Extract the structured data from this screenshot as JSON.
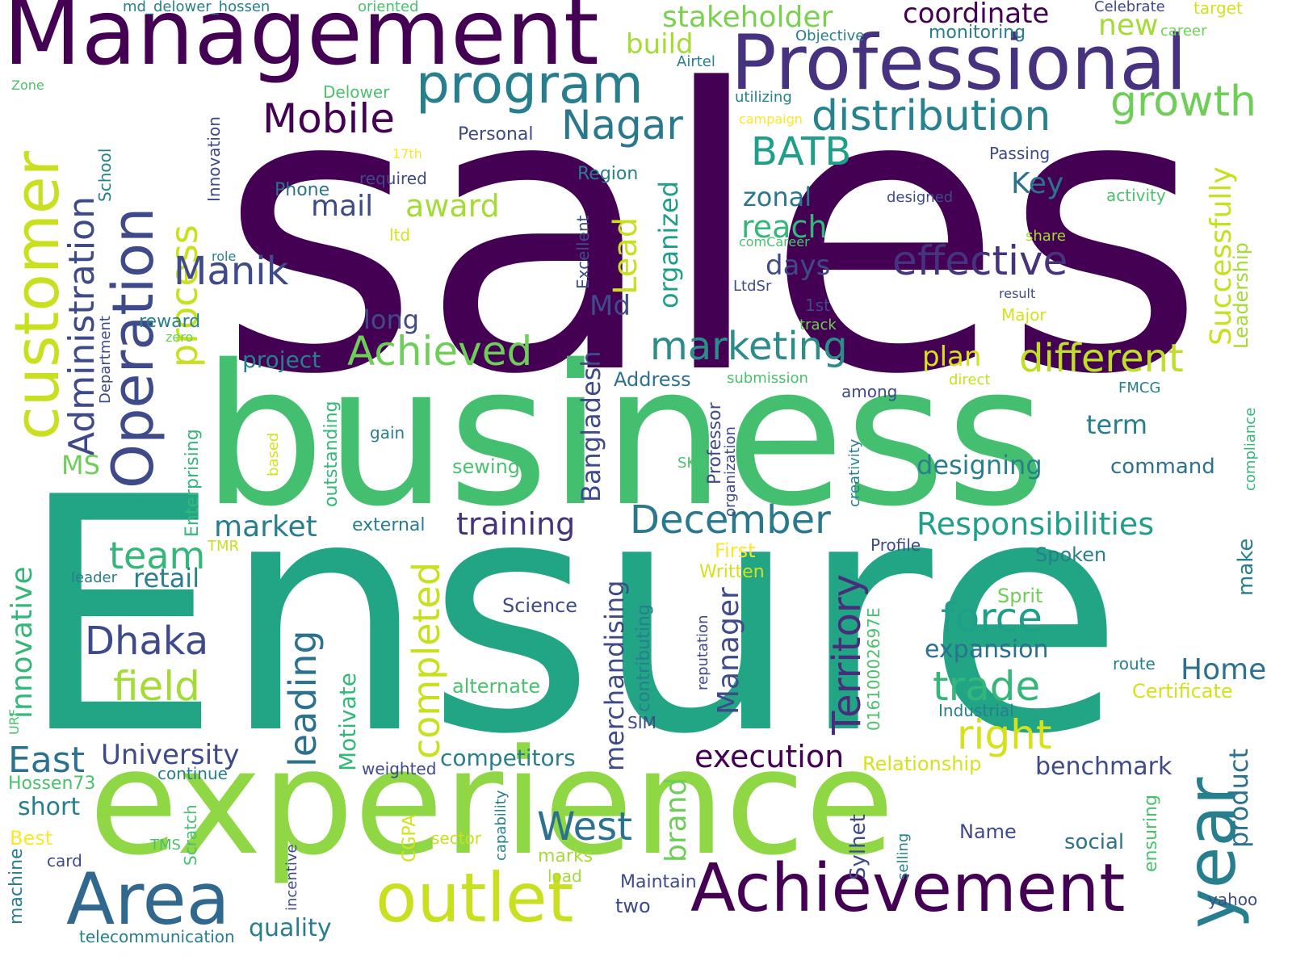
{
  "palette": [
    "#440154",
    "#46327e",
    "#365c8d",
    "#277f8e",
    "#1fa187",
    "#4ac16d",
    "#a0da39",
    "#fde725"
  ],
  "words": [
    {
      "text": "sales",
      "color": "#440154"
    },
    {
      "text": "Ensure",
      "color": "#21a585"
    },
    {
      "text": "business",
      "color": "#44bf70"
    },
    {
      "text": "experience",
      "color": "#8fd744"
    },
    {
      "text": "Management",
      "color": "#440154"
    },
    {
      "text": "Professional",
      "color": "#46327e"
    },
    {
      "text": "customer",
      "color": "#c8e020"
    },
    {
      "text": "Operation",
      "color": "#3e4a89"
    },
    {
      "text": "Achievement",
      "color": "#440154"
    },
    {
      "text": "Area",
      "color": "#31688e"
    },
    {
      "text": "outlet",
      "color": "#c8e020"
    },
    {
      "text": "year",
      "color": "#277f8e"
    },
    {
      "text": "program",
      "color": "#277f8e"
    },
    {
      "text": "distribution",
      "color": "#26828e"
    },
    {
      "text": "growth",
      "color": "#6ece58"
    },
    {
      "text": "Nagar",
      "color": "#2a788e"
    },
    {
      "text": "Mobile",
      "color": "#440154"
    },
    {
      "text": "Administration",
      "color": "#3e4a89"
    },
    {
      "text": "process",
      "color": "#c8e020"
    },
    {
      "text": "BATB",
      "color": "#1f9e89"
    },
    {
      "text": "effective",
      "color": "#46327e"
    },
    {
      "text": "marketing",
      "color": "#2c8c8a"
    },
    {
      "text": "Achieved",
      "color": "#6ece58"
    },
    {
      "text": "different",
      "color": "#bddf26"
    },
    {
      "text": "Manik",
      "color": "#3e4a89"
    },
    {
      "text": "December",
      "color": "#2a788e"
    },
    {
      "text": "Territory",
      "color": "#472d7b"
    },
    {
      "text": "team",
      "color": "#35b779"
    },
    {
      "text": "Dhaka",
      "color": "#3e4a89"
    },
    {
      "text": "field",
      "color": "#a5db36"
    },
    {
      "text": "completed",
      "color": "#c8e020"
    },
    {
      "text": "leading",
      "color": "#2c728e"
    },
    {
      "text": "West",
      "color": "#2c728e"
    },
    {
      "text": "East",
      "color": "#2c728e"
    },
    {
      "text": "force",
      "color": "#1f9e89"
    },
    {
      "text": "trade",
      "color": "#35b779"
    },
    {
      "text": "right",
      "color": "#d5e21a"
    },
    {
      "text": "Responsibilities",
      "color": "#1f9e89"
    },
    {
      "text": "execution",
      "color": "#440154"
    },
    {
      "text": "University",
      "color": "#3e4a89"
    },
    {
      "text": "training",
      "color": "#46327e"
    },
    {
      "text": "stakeholder",
      "color": "#7ad151"
    },
    {
      "text": "coordinate",
      "color": "#440154"
    },
    {
      "text": "build",
      "color": "#a5db36"
    },
    {
      "text": "new",
      "color": "#a5db36"
    },
    {
      "text": "monitoring",
      "color": "#277f8e"
    },
    {
      "text": "Lead",
      "color": "#c8e020"
    },
    {
      "text": "organized",
      "color": "#1f9e89"
    },
    {
      "text": "award",
      "color": "#a5db36"
    },
    {
      "text": "mail",
      "color": "#3e4a89"
    },
    {
      "text": "reach",
      "color": "#35b779"
    },
    {
      "text": "zonal",
      "color": "#2a788e"
    },
    {
      "text": "Key",
      "color": "#2c728e"
    },
    {
      "text": "Successfully",
      "color": "#c8e020"
    },
    {
      "text": "Leadership",
      "color": "#a5db36"
    },
    {
      "text": "days",
      "color": "#3e4a89"
    },
    {
      "text": "Md",
      "color": "#3e4a89"
    },
    {
      "text": "Bangladesh",
      "color": "#3e4a89"
    },
    {
      "text": "plan",
      "color": "#d5e21a"
    },
    {
      "text": "project",
      "color": "#277f8e"
    },
    {
      "text": "long",
      "color": "#3e4a89"
    },
    {
      "text": "MS",
      "color": "#6ece58"
    },
    {
      "text": "market",
      "color": "#277f8e"
    },
    {
      "text": "retail",
      "color": "#277f8e"
    },
    {
      "text": "term",
      "color": "#277f8e"
    },
    {
      "text": "designing",
      "color": "#277f8e"
    },
    {
      "text": "command",
      "color": "#2c728e"
    },
    {
      "text": "innovative",
      "color": "#35b779"
    },
    {
      "text": "Manager",
      "color": "#3e4a89"
    },
    {
      "text": "merchandising",
      "color": "#3e4a89"
    },
    {
      "text": "brand",
      "color": "#6ece58"
    },
    {
      "text": "product",
      "color": "#2c728e"
    },
    {
      "text": "expansion",
      "color": "#2c728e"
    },
    {
      "text": "Home",
      "color": "#2c728e"
    },
    {
      "text": "benchmark",
      "color": "#3e4a89"
    },
    {
      "text": "competitors",
      "color": "#277f8e"
    },
    {
      "text": "Motivate",
      "color": "#35b779"
    },
    {
      "text": "outstanding",
      "color": "#35b779"
    },
    {
      "text": "Enterprising",
      "color": "#35b779"
    },
    {
      "text": "short",
      "color": "#277f8e"
    },
    {
      "text": "quality",
      "color": "#277f8e"
    },
    {
      "text": "two",
      "color": "#3e4a89"
    },
    {
      "text": "Sylhet",
      "color": "#3e4a89"
    },
    {
      "text": "social",
      "color": "#2c728e"
    },
    {
      "text": "make",
      "color": "#277f8e"
    },
    {
      "text": "Spoken",
      "color": "#277f8e"
    },
    {
      "text": "Science",
      "color": "#3e4a89"
    },
    {
      "text": "alternate",
      "color": "#4ac16d"
    },
    {
      "text": "sewing",
      "color": "#4ac16d"
    },
    {
      "text": "external",
      "color": "#277f8e"
    },
    {
      "text": "Written",
      "color": "#d5e21a"
    },
    {
      "text": "First",
      "color": "#fde725"
    },
    {
      "text": "Sprit",
      "color": "#6ece58"
    },
    {
      "text": "Certificate",
      "color": "#d5e21a"
    },
    {
      "text": "Relationship",
      "color": "#d5e21a"
    },
    {
      "text": "Name",
      "color": "#3e4a89"
    },
    {
      "text": "load",
      "color": "#a5db36"
    },
    {
      "text": "marks",
      "color": "#a5db36"
    },
    {
      "text": "sector",
      "color": "#c8e020"
    },
    {
      "text": "CGPA",
      "color": "#d5e21a"
    },
    {
      "text": "TMS",
      "color": "#4ac16d"
    },
    {
      "text": "Scratch",
      "color": "#4ac16d"
    },
    {
      "text": "card",
      "color": "#3e4a89"
    },
    {
      "text": "Best",
      "color": "#fde725"
    },
    {
      "text": "machine",
      "color": "#277f8e"
    },
    {
      "text": "Hossen73",
      "color": "#4ac16d"
    },
    {
      "text": "continue",
      "color": "#277f8e"
    },
    {
      "text": "weighted",
      "color": "#3e4a89"
    },
    {
      "text": "telecommunication",
      "color": "#277f8e"
    },
    {
      "text": "Maintain",
      "color": "#3e4a89"
    },
    {
      "text": "incentive",
      "color": "#3e4a89"
    },
    {
      "text": "capability",
      "color": "#277f8e"
    },
    {
      "text": "selling",
      "color": "#277f8e"
    },
    {
      "text": "ensuring",
      "color": "#4ac16d"
    },
    {
      "text": "yahoo",
      "color": "#3e4a89"
    },
    {
      "text": "route",
      "color": "#277f8e"
    },
    {
      "text": "Industrial",
      "color": "#277f8e"
    },
    {
      "text": "SIM",
      "color": "#3e4a89"
    },
    {
      "text": "contributing",
      "color": "#277f8e"
    },
    {
      "text": "reputation",
      "color": "#3e4a89"
    },
    {
      "text": "01610002697E",
      "color": "#4ac16d"
    },
    {
      "text": "Profile",
      "color": "#3e4a89"
    },
    {
      "text": "TMR",
      "color": "#c8e020"
    },
    {
      "text": "leader",
      "color": "#277f8e"
    },
    {
      "text": "URF",
      "color": "#4ac16d"
    },
    {
      "text": "Professor",
      "color": "#3e4a89"
    },
    {
      "text": "organization",
      "color": "#3e4a89"
    },
    {
      "text": "creativity",
      "color": "#277f8e"
    },
    {
      "text": "SKU",
      "color": "#4ac16d"
    },
    {
      "text": "gain",
      "color": "#277f8e"
    },
    {
      "text": "based",
      "color": "#d5e21a"
    },
    {
      "text": "among",
      "color": "#3e4a89"
    },
    {
      "text": "Address",
      "color": "#2c728e"
    },
    {
      "text": "submission",
      "color": "#4ac16d"
    },
    {
      "text": "direct",
      "color": "#c8e020"
    },
    {
      "text": "FMCG",
      "color": "#277f8e"
    },
    {
      "text": "compliance",
      "color": "#35b779"
    },
    {
      "text": "Department",
      "color": "#3e4a89"
    },
    {
      "text": "reward",
      "color": "#277f8e"
    },
    {
      "text": "zero",
      "color": "#6ece58"
    },
    {
      "text": "role",
      "color": "#277f8e"
    },
    {
      "text": "Phone",
      "color": "#2c728e"
    },
    {
      "text": "ltd",
      "color": "#d5e21a"
    },
    {
      "text": "required",
      "color": "#3e4a89"
    },
    {
      "text": "17th",
      "color": "#fde725"
    },
    {
      "text": "School",
      "color": "#277f8e"
    },
    {
      "text": "Innovation",
      "color": "#3e4a89"
    },
    {
      "text": "Personal",
      "color": "#3e4a89"
    },
    {
      "text": "Region",
      "color": "#277f8e"
    },
    {
      "text": "Excellent",
      "color": "#3e4a89"
    },
    {
      "text": "Delower",
      "color": "#4ac16d"
    },
    {
      "text": "Zone",
      "color": "#4ac16d"
    },
    {
      "text": "md_delower_hossen",
      "color": "#277f8e"
    },
    {
      "text": "oriented",
      "color": "#4ac16d"
    },
    {
      "text": "Celebrate",
      "color": "#3e4a89"
    },
    {
      "text": "target",
      "color": "#d5e21a"
    },
    {
      "text": "career",
      "color": "#6ece58"
    },
    {
      "text": "Objective",
      "color": "#277f8e"
    },
    {
      "text": "Airtel",
      "color": "#277f8e"
    },
    {
      "text": "utilizing",
      "color": "#277f8e"
    },
    {
      "text": "campaign",
      "color": "#fde725"
    },
    {
      "text": "Passing",
      "color": "#3e4a89"
    },
    {
      "text": "designed",
      "color": "#3e4a89"
    },
    {
      "text": "activity",
      "color": "#4ac16d"
    },
    {
      "text": "share",
      "color": "#a5db36"
    },
    {
      "text": "comCareer",
      "color": "#4ac16d"
    },
    {
      "text": "LtdSr",
      "color": "#3e4a89"
    },
    {
      "text": "result",
      "color": "#3e4a89"
    },
    {
      "text": "1st",
      "color": "#3e4a89"
    },
    {
      "text": "Major",
      "color": "#d5e21a"
    },
    {
      "text": "track",
      "color": "#6ece58"
    }
  ]
}
